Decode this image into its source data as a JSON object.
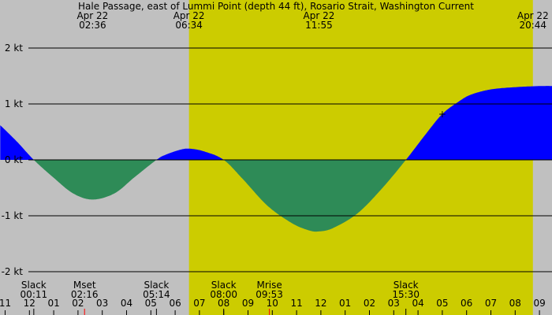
{
  "chart_data": {
    "type": "area",
    "title": "Hale Passage, east of Lummi Point (depth 44 ft), Rosario Strait, Washington Current",
    "y_unit": "kt",
    "ylim": [
      -2,
      2
    ],
    "y_ticks": [
      {
        "value": 2,
        "label": "2 kt"
      },
      {
        "value": 1,
        "label": "1 kt"
      },
      {
        "value": 0,
        "label": "0 kt"
      },
      {
        "value": -1,
        "label": "-1 kt"
      },
      {
        "value": -2,
        "label": "-2 kt"
      }
    ],
    "x_unit": "hours since 00:00 Apr 22",
    "xlim": [
      -1.2,
      33.3
    ],
    "daylight": {
      "start": 6.57,
      "end": 20.73
    },
    "colors": {
      "background": "#c0c0c0",
      "daylight": "#cccc00",
      "flood": "#0000ff",
      "ebb": "#2e8b57",
      "gridline": "#000000",
      "moon_tick": "#ff0000"
    },
    "hour_ticks": [
      {
        "x": -1,
        "label": "11"
      },
      {
        "x": 0,
        "label": "12"
      },
      {
        "x": 1,
        "label": "01"
      },
      {
        "x": 2,
        "label": "02"
      },
      {
        "x": 3,
        "label": "03"
      },
      {
        "x": 4,
        "label": "04"
      },
      {
        "x": 5,
        "label": "05"
      },
      {
        "x": 6,
        "label": "06"
      },
      {
        "x": 7,
        "label": "07"
      },
      {
        "x": 8,
        "label": "08"
      },
      {
        "x": 9,
        "label": "09"
      },
      {
        "x": 10,
        "label": "10"
      },
      {
        "x": 11,
        "label": "11"
      },
      {
        "x": 12,
        "label": "12"
      },
      {
        "x": 13,
        "label": "01"
      },
      {
        "x": 14,
        "label": "02"
      },
      {
        "x": 15,
        "label": "03"
      },
      {
        "x": 16,
        "label": "04"
      },
      {
        "x": 17,
        "label": "05"
      },
      {
        "x": 18,
        "label": "06"
      },
      {
        "x": 19,
        "label": "07"
      },
      {
        "x": 20,
        "label": "08"
      },
      {
        "x": 21,
        "label": "09"
      }
    ],
    "top_labels": [
      {
        "x": 2.6,
        "date": "Apr 22",
        "time": "02:36"
      },
      {
        "x": 6.57,
        "date": "Apr 22",
        "time": "06:34"
      },
      {
        "x": 11.92,
        "date": "Apr 22",
        "time": "11:55"
      },
      {
        "x": 20.73,
        "date": "Apr 22",
        "time": "20:44"
      }
    ],
    "bottom_events": [
      {
        "x": 0.18,
        "name": "Slack",
        "time": "00:11"
      },
      {
        "x": 2.27,
        "name": "Mset",
        "time": "02:16"
      },
      {
        "x": 5.23,
        "name": "Slack",
        "time": "05:14"
      },
      {
        "x": 8.0,
        "name": "Slack",
        "time": "08:00"
      },
      {
        "x": 9.88,
        "name": "Mrise",
        "time": "09:53"
      },
      {
        "x": 15.5,
        "name": "Slack",
        "time": "15:30"
      }
    ],
    "marker": {
      "x": 17.0,
      "y": 0.82,
      "symbol": "+"
    },
    "series": [
      {
        "x": [
          -1.2,
          -0.5,
          0.18,
          1.0,
          1.8,
          2.6,
          3.5,
          4.3,
          5.23,
          5.6,
          6.2,
          6.6,
          7.2,
          8.0,
          8.8,
          9.8,
          10.8,
          11.5,
          11.92,
          12.5,
          13.5,
          14.5,
          15.5,
          16.3,
          17.0,
          17.7,
          18.2,
          19.0,
          20.0,
          21.0,
          21.7,
          22.1
        ],
        "y": [
          0.62,
          0.32,
          0.0,
          -0.32,
          -0.6,
          -0.71,
          -0.6,
          -0.32,
          0.0,
          0.09,
          0.18,
          0.2,
          0.15,
          0.0,
          -0.35,
          -0.82,
          -1.13,
          -1.26,
          -1.28,
          -1.22,
          -0.96,
          -0.52,
          0.0,
          0.45,
          0.82,
          1.05,
          1.17,
          1.26,
          1.3,
          1.32,
          1.32,
          1.31
        ]
      }
    ]
  }
}
